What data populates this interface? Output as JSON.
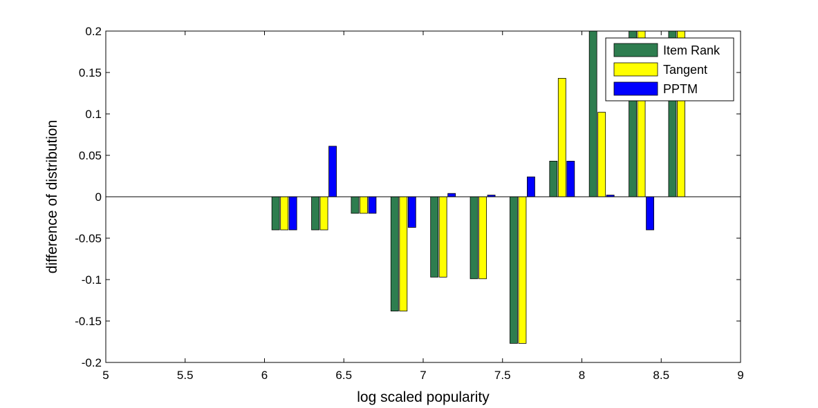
{
  "chart_data": {
    "type": "bar",
    "xlabel": "log scaled popularity",
    "ylabel": "difference of distribution",
    "xlim": [
      5,
      9
    ],
    "ylim": [
      -0.2,
      0.2
    ],
    "x_ticks": [
      "5",
      "5.5",
      "6",
      "6.5",
      "7",
      "7.5",
      "8",
      "8.5",
      "9"
    ],
    "y_ticks": [
      "-0.2",
      "-0.15",
      "-0.1",
      "-0.05",
      "0",
      "0.05",
      "0.1",
      "0.15",
      "0.2"
    ],
    "x": [
      6.125,
      6.375,
      6.625,
      6.875,
      7.125,
      7.375,
      7.625,
      7.875,
      8.125,
      8.375,
      8.625
    ],
    "series": [
      {
        "name": "Item Rank",
        "color": "#2e7d4f",
        "values": [
          -0.04,
          -0.04,
          -0.02,
          -0.138,
          -0.097,
          -0.099,
          -0.177,
          0.043,
          0.2,
          0.2,
          0.2
        ]
      },
      {
        "name": "Tangent",
        "color": "#ffff00",
        "values": [
          -0.04,
          -0.04,
          -0.02,
          -0.138,
          -0.097,
          -0.099,
          -0.177,
          0.143,
          0.102,
          0.2,
          0.2
        ]
      },
      {
        "name": "PPTM",
        "color": "#0000ff",
        "values": [
          -0.04,
          0.061,
          -0.02,
          -0.037,
          0.004,
          0.002,
          0.024,
          0.043,
          0.002,
          -0.04,
          0
        ]
      }
    ],
    "legend_position": "top-right",
    "grid": false
  }
}
